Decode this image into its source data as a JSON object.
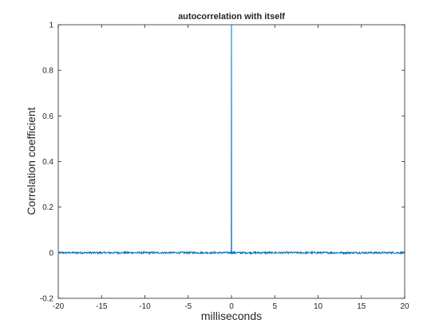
{
  "chart_data": {
    "type": "line",
    "title": "autocorrelation with itself",
    "xlabel": "milliseconds",
    "ylabel": "Correlation coefficient",
    "xlim": [
      -20,
      20
    ],
    "ylim": [
      -0.2,
      1
    ],
    "xticks": [
      -20,
      -15,
      -10,
      -5,
      0,
      5,
      10,
      15,
      20
    ],
    "yticks": [
      -0.2,
      0,
      0.2,
      0.4,
      0.6,
      0.8,
      1
    ],
    "grid": false,
    "legend": "none",
    "series": [
      {
        "color": "#0072BD",
        "description_points": [
          {
            "x": -20,
            "y": 0.0
          },
          {
            "x": -0.05,
            "y": 0.0
          },
          {
            "x": 0,
            "y": 1.0
          },
          {
            "x": 0.05,
            "y": 0.0
          },
          {
            "x": 20,
            "y": 0.0
          }
        ],
        "noise_amplitude": 0.004
      }
    ]
  }
}
